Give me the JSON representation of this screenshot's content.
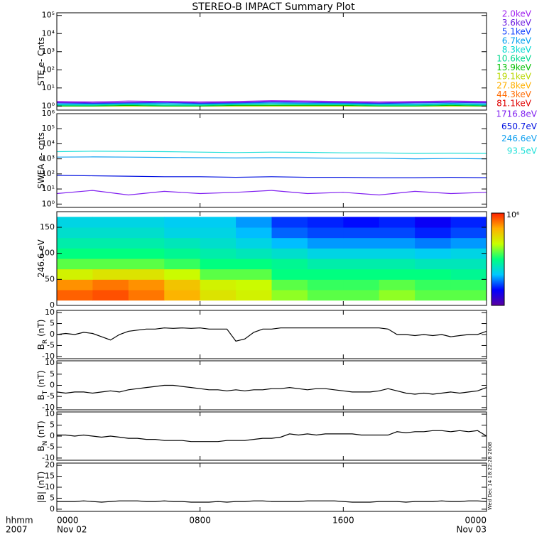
{
  "title": "STEREO-B IMPACT Summary Plot",
  "timestamp": "Wed Dec 14 18:22:28 2008",
  "xaxis": {
    "xlim": [
      0,
      24
    ],
    "xticks": [
      {
        "value": 0,
        "label": "0000"
      },
      {
        "value": 8,
        "label": "0800"
      },
      {
        "value": 16,
        "label": "1600"
      },
      {
        "value": 24,
        "label": "0000"
      }
    ],
    "dates": [
      {
        "value": 0,
        "label": "Nov 02"
      },
      {
        "value": 24,
        "label": "Nov 03"
      }
    ],
    "row_labels": [
      "hhmm",
      "2007"
    ]
  },
  "chart_data": [
    {
      "type": "line",
      "ylabel": "STE e- Cnts",
      "log": true,
      "ylim": [
        0.6,
        140000
      ],
      "yticks": [
        {
          "value": 1,
          "label": "10⁰"
        },
        {
          "value": 10,
          "label": "10¹"
        },
        {
          "value": 100,
          "label": "10²"
        },
        {
          "value": 1000,
          "label": "10³"
        },
        {
          "value": 10000,
          "label": "10⁴"
        },
        {
          "value": 100000,
          "label": "10⁵"
        }
      ],
      "x": [
        0,
        2,
        4,
        6,
        8,
        10,
        12,
        14,
        16,
        18,
        20,
        22,
        24
      ],
      "series": [
        {
          "name": "2.0keV",
          "color": "#a020f0",
          "values": [
            1.8,
            1.7,
            1.9,
            1.8,
            1.7,
            1.8,
            2.0,
            1.9,
            1.8,
            1.7,
            1.8,
            1.9,
            1.8
          ]
        },
        {
          "name": "3.6keV",
          "color": "#6a1adf",
          "values": [
            1.6,
            1.5,
            1.6,
            1.7,
            1.5,
            1.6,
            1.8,
            1.7,
            1.6,
            1.5,
            1.6,
            1.7,
            1.6
          ]
        },
        {
          "name": "5.1keV",
          "color": "#1040ff",
          "values": [
            1.5,
            1.4,
            1.5,
            1.6,
            1.4,
            1.5,
            1.7,
            1.6,
            1.5,
            1.4,
            1.5,
            1.6,
            1.5
          ]
        },
        {
          "name": "6.7keV",
          "color": "#00a0f0",
          "values": [
            1.3,
            1.3,
            1.4,
            1.4,
            1.3,
            1.4,
            1.5,
            1.4,
            1.4,
            1.3,
            1.3,
            1.4,
            1.3
          ]
        },
        {
          "name": "8.3keV",
          "color": "#00d8d0",
          "values": [
            1.2,
            1.2,
            1.3,
            1.2,
            1.2,
            1.3,
            1.4,
            1.3,
            1.3,
            1.2,
            1.2,
            1.3,
            1.2
          ]
        },
        {
          "name": "10.6keV",
          "color": "#00d890",
          "values": [
            1.1,
            1.1,
            1.2,
            1.1,
            1.1,
            1.2,
            1.2,
            1.2,
            1.2,
            1.1,
            1.1,
            1.2,
            1.1
          ]
        },
        {
          "name": "13.9keV",
          "color": "#00c000",
          "values": [
            1.0,
            1.0,
            1.1,
            1.0,
            1.0,
            1.1,
            1.1,
            1.1,
            1.1,
            1.0,
            1.0,
            1.1,
            1.0
          ]
        },
        {
          "name": "19.1keV",
          "color": "#b8d800",
          "values": [
            1.0,
            1.0,
            1.0,
            1.0,
            1.0,
            1.0,
            1.0,
            1.0,
            1.0,
            1.0,
            1.0,
            1.0,
            1.0
          ]
        },
        {
          "name": "27.8keV",
          "color": "#ffb000",
          "values": [
            1.0,
            1.0,
            1.0,
            1.0,
            1.0,
            1.0,
            1.0,
            1.0,
            1.0,
            1.0,
            1.0,
            1.0,
            1.0
          ]
        },
        {
          "name": "44.3keV",
          "color": "#ff6a00",
          "values": [
            1.0,
            1.0,
            1.0,
            1.0,
            1.0,
            1.0,
            1.0,
            1.0,
            1.0,
            1.0,
            1.0,
            1.0,
            1.0
          ]
        },
        {
          "name": "81.1keV",
          "color": "#e00000",
          "values": [
            1.0,
            1.0,
            1.0,
            1.0,
            1.0,
            1.0,
            1.0,
            1.0,
            1.0,
            1.0,
            1.0,
            1.0,
            1.0
          ]
        }
      ]
    },
    {
      "type": "line",
      "ylabel": "SWEA e- cnts",
      "log": true,
      "ylim": [
        0.6,
        1000000
      ],
      "yticks": [
        {
          "value": 1,
          "label": "10⁰"
        },
        {
          "value": 10,
          "label": "10¹"
        },
        {
          "value": 100,
          "label": "10²"
        },
        {
          "value": 1000,
          "label": "10³"
        },
        {
          "value": 10000,
          "label": "10⁴"
        },
        {
          "value": 100000,
          "label": "10⁵"
        },
        {
          "value": 1000000,
          "label": "10⁶"
        }
      ],
      "x": [
        0,
        2,
        4,
        6,
        8,
        10,
        12,
        14,
        16,
        18,
        20,
        22,
        24
      ],
      "series": [
        {
          "name": "1716.8eV",
          "color": "#8020f0",
          "values": [
            5,
            8,
            4,
            7,
            5,
            6,
            8,
            5,
            6,
            4,
            7,
            5,
            6
          ]
        },
        {
          "name": "650.7eV",
          "color": "#0010e0",
          "values": [
            80,
            75,
            70,
            65,
            65,
            60,
            65,
            60,
            60,
            55,
            55,
            60,
            55
          ]
        },
        {
          "name": "246.6eV",
          "color": "#10a0f0",
          "values": [
            1300,
            1350,
            1300,
            1250,
            1200,
            1150,
            1200,
            1150,
            1100,
            1100,
            1000,
            1050,
            1000
          ]
        },
        {
          "name": "93.5eV",
          "color": "#20e0d8",
          "values": [
            3000,
            3200,
            3100,
            3000,
            2800,
            2600,
            2800,
            2700,
            2500,
            2500,
            2300,
            2400,
            2300
          ]
        }
      ]
    },
    {
      "type": "heatmap",
      "ylabel": "246.6 eV",
      "ylim": [
        0,
        180
      ],
      "yticks": [
        0,
        50,
        100,
        150
      ],
      "x_edges": [
        0,
        2,
        4,
        6,
        8,
        10,
        12,
        14,
        16,
        18,
        20,
        22,
        24
      ],
      "y_edges": [
        10,
        30,
        50,
        70,
        90,
        110,
        130,
        150,
        170
      ],
      "z": [
        [
          500000,
          600000,
          400000,
          200000,
          80000,
          60000,
          30000,
          20000,
          20000,
          30000,
          20000,
          20000
        ],
        [
          300000,
          400000,
          300000,
          150000,
          60000,
          50000,
          20000,
          15000,
          15000,
          20000,
          15000,
          15000
        ],
        [
          60000,
          80000,
          80000,
          50000,
          20000,
          20000,
          10000,
          10000,
          10000,
          10000,
          10000,
          8000
        ],
        [
          20000,
          20000,
          20000,
          15000,
          10000,
          10000,
          8000,
          6000,
          6000,
          6000,
          5000,
          5000
        ],
        [
          10000,
          10000,
          10000,
          8000,
          6000,
          5000,
          4000,
          3000,
          3000,
          3000,
          2500,
          3000
        ],
        [
          6000,
          6000,
          6000,
          5000,
          4000,
          3000,
          2000,
          1500,
          1500,
          1500,
          1200,
          1500
        ],
        [
          4000,
          4000,
          4000,
          3000,
          3000,
          2000,
          1000,
          800,
          800,
          800,
          600,
          800
        ],
        [
          3000,
          3000,
          3000,
          2500,
          2500,
          1500,
          700,
          600,
          500,
          600,
          400,
          600
        ]
      ],
      "colorbar": {
        "zlim": [
          100,
          1000000
        ],
        "log": true,
        "zticks": [
          {
            "value": 1000000,
            "label": "10⁶"
          }
        ],
        "colors": [
          "#5a00a0",
          "#0000ff",
          "#00c8ff",
          "#00ff80",
          "#c8ff00",
          "#ffb000",
          "#ff2000"
        ]
      }
    },
    {
      "type": "line",
      "ylabel": "B",
      "ylabel_sub": "R",
      "ylabel_unit": "(nT)",
      "log": false,
      "ylim": [
        -11,
        11
      ],
      "yticks": [
        -10,
        -5,
        0,
        5,
        10
      ],
      "x": [
        0,
        0.5,
        1,
        1.5,
        2,
        2.5,
        3,
        3.5,
        4,
        4.5,
        5,
        5.5,
        6,
        6.5,
        7,
        7.5,
        8,
        8.5,
        9,
        9.5,
        10,
        10.5,
        11,
        11.5,
        12,
        12.5,
        13,
        13.5,
        14,
        14.5,
        15,
        15.5,
        16,
        16.5,
        17,
        17.5,
        18,
        18.5,
        19,
        19.5,
        20,
        20.5,
        21,
        21.5,
        22,
        22.5,
        23,
        23.5,
        24
      ],
      "series": [
        {
          "color": "#000000",
          "values": [
            0,
            0.5,
            0,
            1,
            0.5,
            -1,
            -2.5,
            0,
            1.5,
            2,
            2.5,
            2.5,
            3,
            2.8,
            3,
            2.8,
            3,
            2.5,
            2.5,
            2.5,
            -3,
            -2,
            1,
            2.5,
            2.5,
            3,
            3,
            3,
            3,
            3,
            3,
            3,
            3,
            3,
            3,
            3,
            3,
            2.5,
            0,
            0,
            -0.5,
            0,
            -0.5,
            0,
            -1,
            -0.5,
            0,
            0,
            1.5
          ]
        }
      ]
    },
    {
      "type": "line",
      "ylabel": "B",
      "ylabel_sub": "T",
      "ylabel_unit": "(nT)",
      "log": false,
      "ylim": [
        -11,
        11
      ],
      "yticks": [
        -10,
        -5,
        0,
        5,
        10
      ],
      "x": [
        0,
        0.5,
        1,
        1.5,
        2,
        2.5,
        3,
        3.5,
        4,
        4.5,
        5,
        5.5,
        6,
        6.5,
        7,
        7.5,
        8,
        8.5,
        9,
        9.5,
        10,
        10.5,
        11,
        11.5,
        12,
        12.5,
        13,
        13.5,
        14,
        14.5,
        15,
        15.5,
        16,
        16.5,
        17,
        17.5,
        18,
        18.5,
        19,
        19.5,
        20,
        20.5,
        21,
        21.5,
        22,
        22.5,
        23,
        23.5,
        24
      ],
      "series": [
        {
          "color": "#000000",
          "values": [
            -3,
            -3.5,
            -3,
            -3,
            -3.5,
            -3,
            -2.5,
            -3,
            -2,
            -1.5,
            -1,
            -0.5,
            0,
            0,
            -0.5,
            -1,
            -1.5,
            -2,
            -2,
            -2.5,
            -2,
            -2.5,
            -2,
            -2,
            -1.5,
            -1.5,
            -1,
            -1.5,
            -2,
            -1.5,
            -1.5,
            -2,
            -2.5,
            -3,
            -3,
            -3,
            -2.5,
            -1.5,
            -2.5,
            -3.5,
            -4,
            -3.5,
            -4,
            -3.5,
            -3,
            -3.5,
            -3,
            -2.5,
            -1
          ]
        }
      ]
    },
    {
      "type": "line",
      "ylabel": "B",
      "ylabel_sub": "N",
      "ylabel_unit": "(nT)",
      "log": false,
      "ylim": [
        -11,
        11
      ],
      "yticks": [
        -10,
        -5,
        0,
        5,
        10
      ],
      "x": [
        0,
        0.5,
        1,
        1.5,
        2,
        2.5,
        3,
        3.5,
        4,
        4.5,
        5,
        5.5,
        6,
        6.5,
        7,
        7.5,
        8,
        8.5,
        9,
        9.5,
        10,
        10.5,
        11,
        11.5,
        12,
        12.5,
        13,
        13.5,
        14,
        14.5,
        15,
        15.5,
        16,
        16.5,
        17,
        17.5,
        18,
        18.5,
        19,
        19.5,
        20,
        20.5,
        21,
        21.5,
        22,
        22.5,
        23,
        23.5,
        24
      ],
      "series": [
        {
          "color": "#000000",
          "values": [
            0.5,
            0.5,
            0,
            0.5,
            0,
            -0.5,
            0,
            -0.5,
            -1,
            -1,
            -1.5,
            -1.5,
            -2,
            -2,
            -2,
            -2.5,
            -2.5,
            -2.5,
            -2.5,
            -2,
            -2,
            -2,
            -1.5,
            -1,
            -1,
            -0.5,
            1,
            0.5,
            1,
            0.5,
            1,
            1,
            1,
            1,
            0.5,
            0.5,
            0.5,
            0.5,
            2,
            1.5,
            2,
            2,
            2.5,
            2.5,
            2,
            2.5,
            2,
            2.5,
            0
          ]
        }
      ]
    },
    {
      "type": "line",
      "ylabel": "|B|",
      "ylabel_unit": "(nT)",
      "log": false,
      "ylim": [
        -1,
        21
      ],
      "yticks": [
        0,
        5,
        10,
        15,
        20
      ],
      "x": [
        0,
        0.5,
        1,
        1.5,
        2,
        2.5,
        3,
        3.5,
        4,
        4.5,
        5,
        5.5,
        6,
        6.5,
        7,
        7.5,
        8,
        8.5,
        9,
        9.5,
        10,
        10.5,
        11,
        11.5,
        12,
        12.5,
        13,
        13.5,
        14,
        14.5,
        15,
        15.5,
        16,
        16.5,
        17,
        17.5,
        18,
        18.5,
        19,
        19.5,
        20,
        20.5,
        21,
        21.5,
        22,
        22.5,
        23,
        23.5,
        24
      ],
      "series": [
        {
          "color": "#000000",
          "values": [
            3.5,
            3.5,
            3.5,
            3.8,
            3.5,
            3.2,
            3.5,
            3.8,
            3.8,
            3.8,
            3.5,
            3.5,
            3.8,
            3.5,
            3.5,
            3.2,
            3.2,
            3.2,
            3.5,
            3.2,
            3.5,
            3.5,
            3.8,
            3.8,
            3.5,
            3.5,
            3.5,
            3.5,
            3.8,
            3.8,
            3.8,
            3.8,
            3.5,
            3.2,
            3.2,
            3.2,
            3.5,
            3.5,
            3.5,
            3.2,
            3.5,
            3.5,
            3.5,
            3.8,
            3.5,
            3.5,
            3.8,
            3.8,
            3.5
          ]
        }
      ]
    }
  ]
}
